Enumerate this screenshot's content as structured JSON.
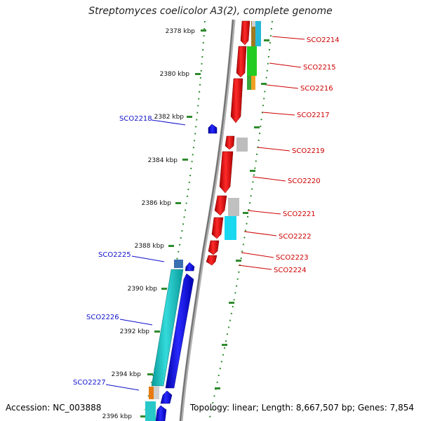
{
  "title": "Streptomyces coelicolor A3(2), complete genome",
  "footer": {
    "accession": "Accession: NC_003888",
    "summary": "Topology: linear; Length: 8,667,507 bp; Genes: 7,854"
  },
  "colors": {
    "backbone": "#8a8a8a",
    "ruler_tick": "#2e8b2e",
    "forward_label": "#cc0000",
    "reverse_label": "#1010cc",
    "forward_gene": "#e60000",
    "reverse_gene": "#1414e6",
    "reverse_gene_alt": "#20c0c0"
  },
  "ruler_labels": [
    "2378 kbp",
    "2380 kbp",
    "2382 kbp",
    "2384 kbp",
    "2386 kbp",
    "2388 kbp",
    "2390 kbp",
    "2392 kbp",
    "2394 kbp",
    "2396 kbp"
  ],
  "forward_genes": [
    "SCO2214",
    "SCO2215",
    "SCO2216",
    "SCO2217",
    "SCO2219",
    "SCO2220",
    "SCO2221",
    "SCO2222",
    "SCO2223",
    "SCO2224"
  ],
  "reverse_genes": [
    "SCO2218",
    "SCO2225",
    "SCO2226",
    "SCO2227"
  ]
}
